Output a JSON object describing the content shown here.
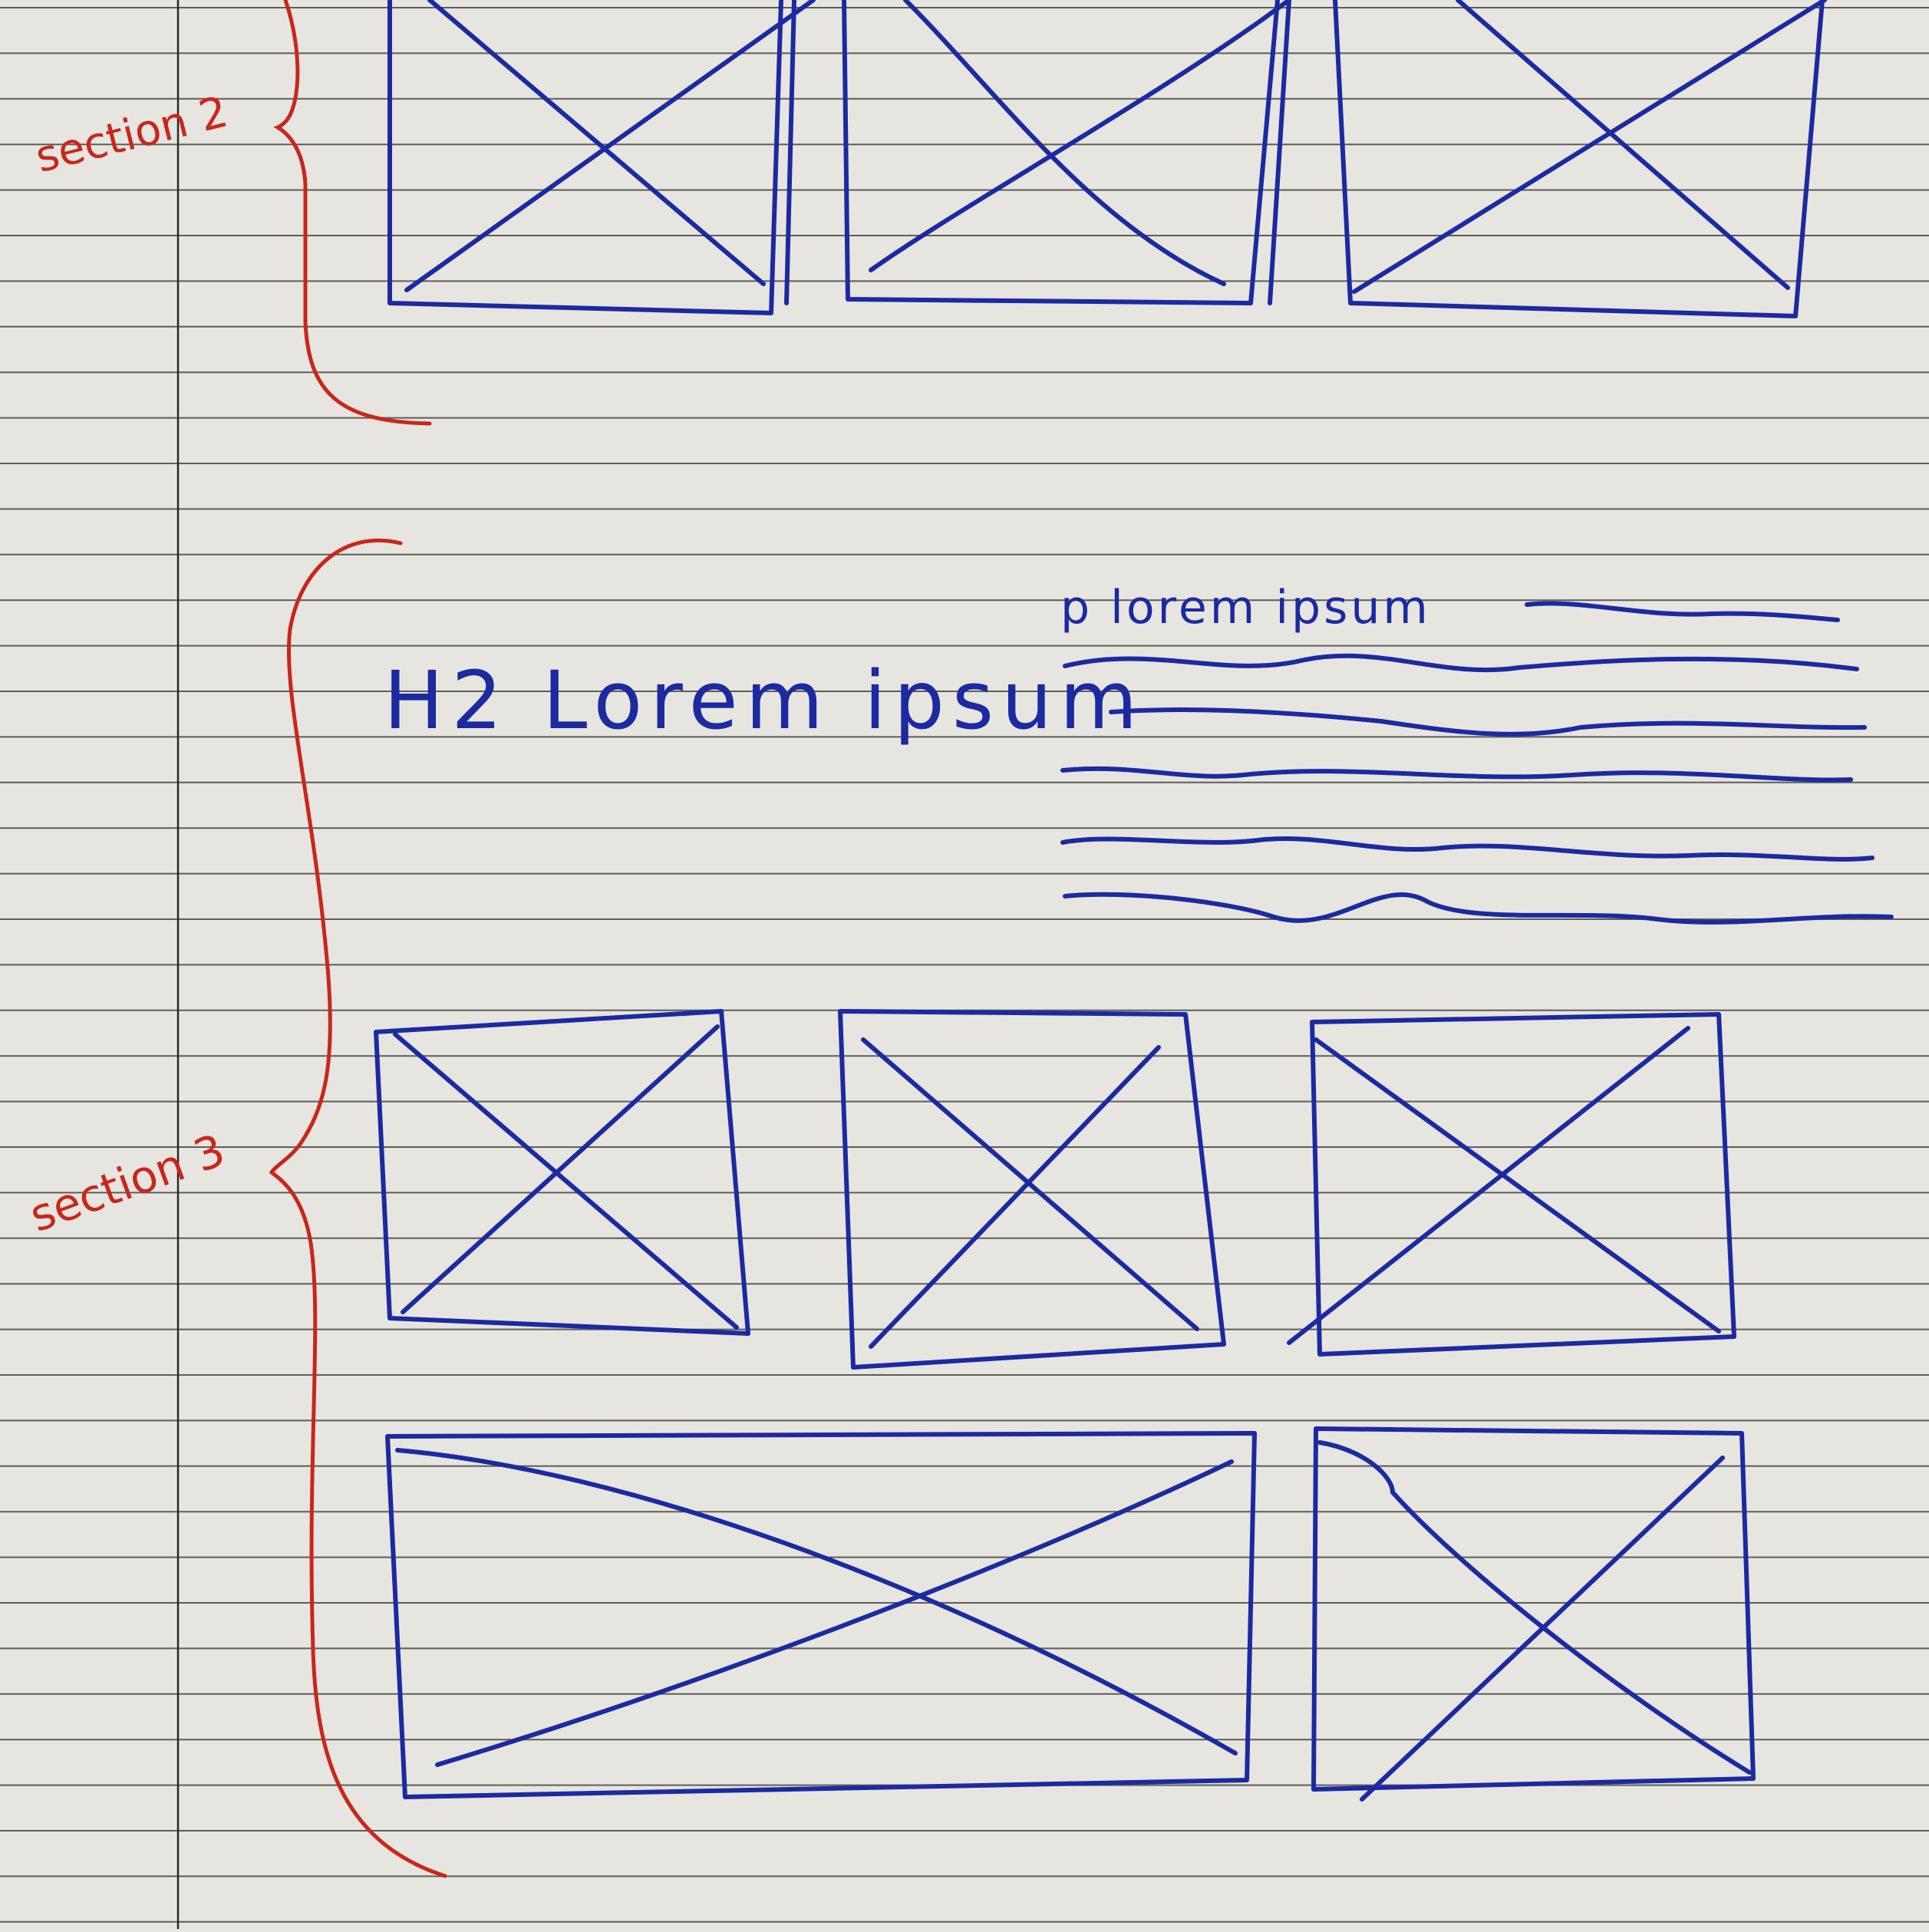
{
  "annotations": {
    "section_2": "section 2",
    "section_3": "section 3"
  },
  "content": {
    "heading": "H2 Lorem ipsum",
    "paragraph_label": "p  lorem ipsum"
  },
  "placeholders": {
    "section_2": [
      "image",
      "image",
      "image"
    ],
    "section_3_row_1": [
      "image",
      "image",
      "image"
    ],
    "section_3_row_2": [
      "image",
      "image"
    ]
  },
  "colors": {
    "paper": "#e7e5df",
    "rule_line": "#3a3a3a",
    "margin_line": "#2a2a2a",
    "ink_blue": "#1b2aa0",
    "ink_red": "#c9261c"
  }
}
